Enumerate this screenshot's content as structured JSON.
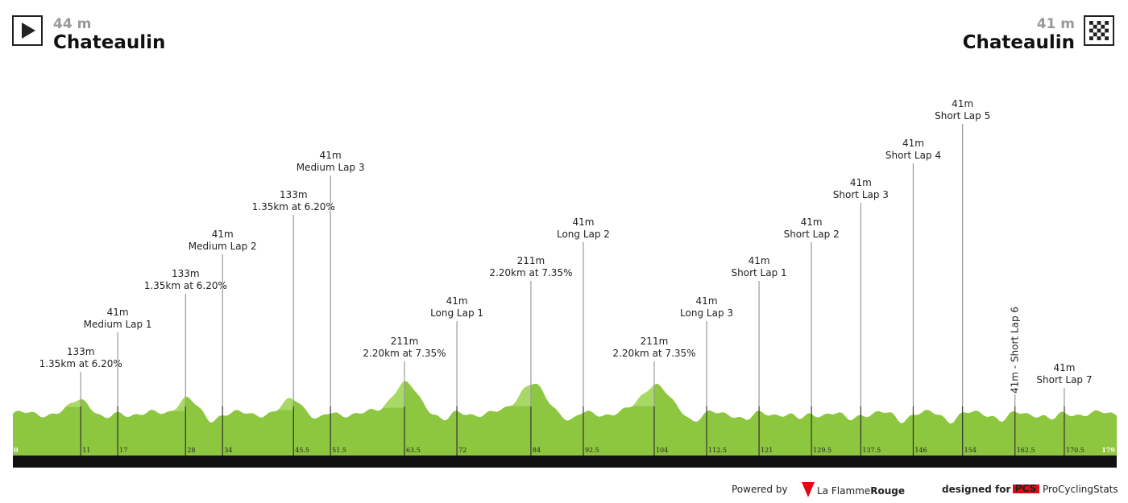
{
  "header": {
    "start": {
      "altitude": "44 m",
      "name": "Chateaulin"
    },
    "finish": {
      "altitude": "41 m",
      "name": "Chateaulin"
    }
  },
  "profile": {
    "start_km": 0,
    "end_km": 179,
    "markers": [
      {
        "km": 11,
        "lines": [
          "133m",
          "1.35km at 6.20%"
        ]
      },
      {
        "km": 17,
        "lines": [
          "41m",
          "Medium Lap 1"
        ]
      },
      {
        "km": 28,
        "lines": [
          "133m",
          "1.35km at 6.20%"
        ]
      },
      {
        "km": 34,
        "lines": [
          "41m",
          "Medium Lap 2"
        ]
      },
      {
        "km": 45.5,
        "lines": [
          "133m",
          "1.35km at 6.20%"
        ]
      },
      {
        "km": 51.5,
        "lines": [
          "41m",
          "Medium Lap 3"
        ]
      },
      {
        "km": 63.5,
        "lines": [
          "211m",
          "2.20km at 7.35%"
        ]
      },
      {
        "km": 72,
        "lines": [
          "41m",
          "Long Lap 1"
        ]
      },
      {
        "km": 84,
        "lines": [
          "211m",
          "2.20km at 7.35%"
        ]
      },
      {
        "km": 92.5,
        "lines": [
          "41m",
          "Long Lap 2"
        ]
      },
      {
        "km": 104,
        "lines": [
          "211m",
          "2.20km at 7.35%"
        ]
      },
      {
        "km": 112.5,
        "lines": [
          "41m",
          "Long Lap 3"
        ]
      },
      {
        "km": 121,
        "lines": [
          "41m",
          "Short Lap 1"
        ]
      },
      {
        "km": 129.5,
        "lines": [
          "41m",
          "Short Lap 2"
        ]
      },
      {
        "km": 137.5,
        "lines": [
          "41m",
          "Short Lap 3"
        ]
      },
      {
        "km": 146,
        "lines": [
          "41m",
          "Short Lap 4"
        ]
      },
      {
        "km": 154,
        "lines": [
          "41m",
          "Short Lap 5"
        ]
      },
      {
        "km": 162.5,
        "lines": [
          "41m - Short Lap 6"
        ]
      },
      {
        "km": 170.5,
        "lines": [
          "41m",
          "Short Lap 7"
        ]
      }
    ]
  },
  "footer": {
    "powered": "Powered by",
    "brand1": "La Flamme",
    "brand2": "Rouge",
    "designed": "designed for",
    "pcs": "PCS",
    "pcs_name": "ProCyclingStats"
  }
}
